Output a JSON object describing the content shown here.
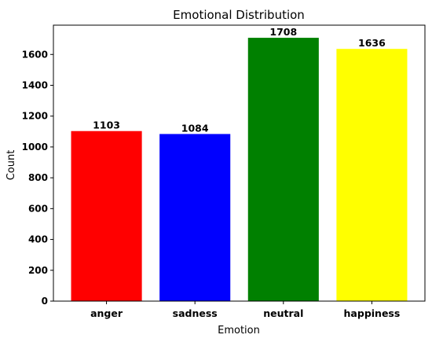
{
  "chart_data": {
    "type": "bar",
    "title": "Emotional Distribution",
    "xlabel": "Emotion",
    "ylabel": "Count",
    "categories": [
      "anger",
      "sadness",
      "neutral",
      "happiness"
    ],
    "values": [
      1103,
      1084,
      1708,
      1636
    ],
    "colors": [
      "#ff0000",
      "#0000ff",
      "#008000",
      "#ffff00"
    ],
    "ylim": [
      0,
      1790
    ],
    "yticks": [
      0,
      200,
      400,
      600,
      800,
      1000,
      1200,
      1400,
      1600
    ],
    "grid": false,
    "legend": "none"
  }
}
